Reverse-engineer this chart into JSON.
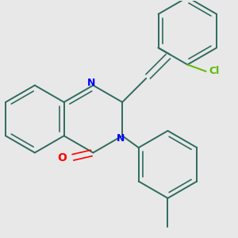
{
  "background_color": "#e8e8e8",
  "bond_color": "#2d6b5e",
  "nitrogen_color": "#0000ff",
  "oxygen_color": "#ff0000",
  "chlorine_color": "#5cb800",
  "lw": 1.4,
  "lw_inner": 1.2,
  "figsize": [
    3.0,
    3.0
  ],
  "dpi": 100,
  "xlim": [
    -2.5,
    4.5
  ],
  "ylim": [
    -3.5,
    3.5
  ]
}
